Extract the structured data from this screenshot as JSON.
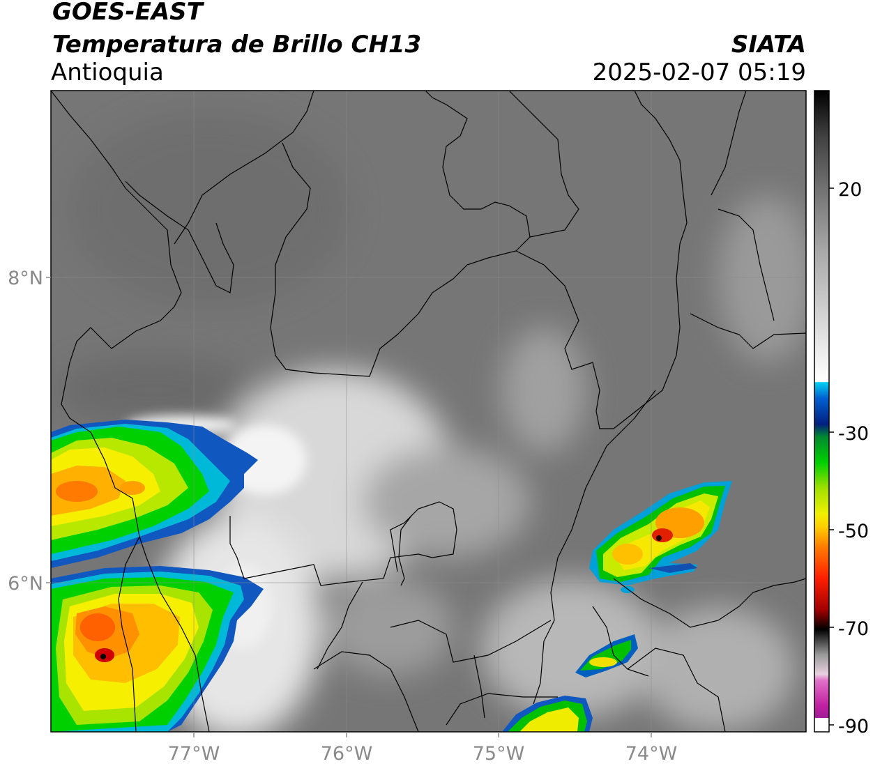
{
  "header": {
    "satellite": "GOES-EAST",
    "product": "Temperatura de Brillo CH13",
    "region": "Antioquia",
    "brand": "SIATA",
    "datetime": "2025-02-07 05:19"
  },
  "axes": {
    "latitude_labels": [
      "8°N",
      "6°N"
    ],
    "longitude_labels": [
      "77°W",
      "76°W",
      "75°W",
      "74°W"
    ]
  },
  "colorbar": {
    "tick_labels": [
      "20",
      "-30",
      "-50",
      "-70",
      "-90"
    ],
    "colors": {
      "warm_gray_dark": "#000000",
      "gray_light": "#f2f2f2",
      "cyan": "#00c8f0",
      "navy": "#002a90",
      "green": "#00d000",
      "yellow": "#f8f000",
      "orange": "#f08000",
      "red": "#e00000",
      "black": "#000000",
      "magenta": "#c020a0",
      "purple": "#801890"
    }
  },
  "map": {
    "grid": true,
    "background_color": "#7a7a7a"
  }
}
